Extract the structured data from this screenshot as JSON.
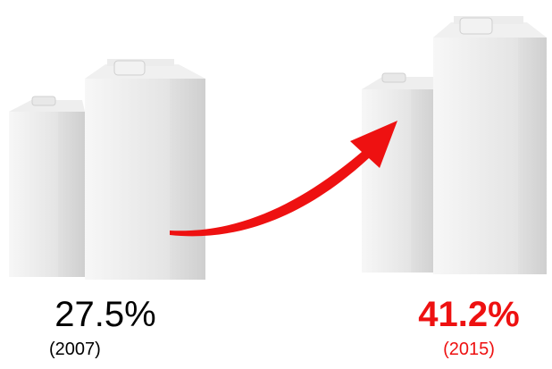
{
  "items": [
    {
      "value_label": "27.5%",
      "year": "(2007)"
    },
    {
      "value_label": "41.2%",
      "year": "(2015)"
    }
  ]
}
